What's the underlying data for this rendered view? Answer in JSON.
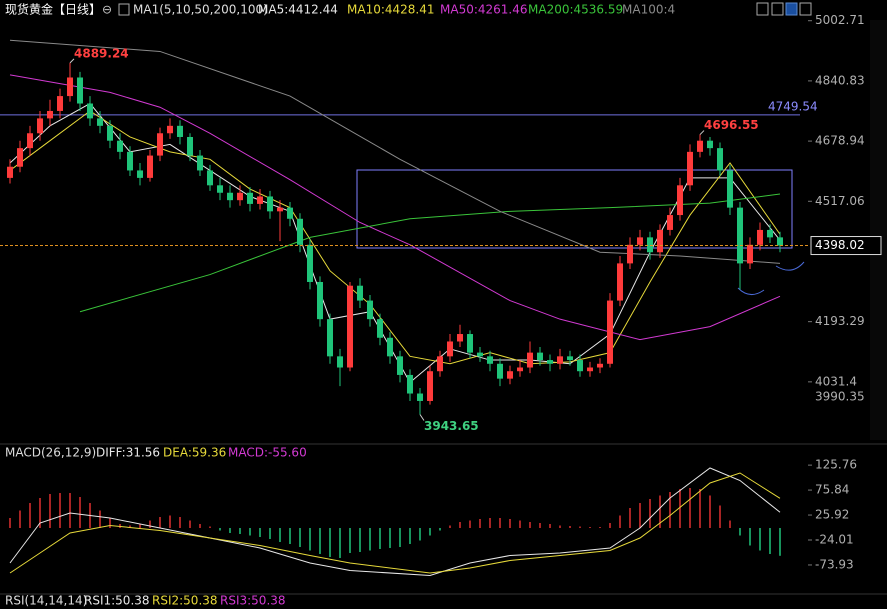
{
  "header": {
    "title": "现货黄金【日线】",
    "indicator": "MA1(5,10,50,200,100)",
    "ma_values": [
      "MA5:4412.44",
      "MA10:4428.41",
      "MA50:4261.46",
      "MA200:4536.59",
      "MA100:4"
    ]
  },
  "macd_header": [
    "MACD(26,12,9)",
    "DIFF:31.56",
    "DEA:59.36",
    "MACD:-55.60"
  ],
  "rsi_header": [
    "RSI(14,14,14)",
    "RSI1:50.38",
    "RSI2:50.38",
    "RSI3:50.38"
  ],
  "chart_data": [
    {
      "type": "candlestick",
      "up_color": "#ff3b3b",
      "down_color": "#1fc47a",
      "ylim": [
        3875,
        5010
      ],
      "yticks": [
        5002.71,
        4840.83,
        4678.94,
        4517.06,
        4193.29,
        4031.4
      ],
      "hline": 4749.54,
      "low_label": 3990.35,
      "candles": [
        [
          4580,
          4630,
          4565,
          4610
        ],
        [
          4610,
          4680,
          4595,
          4660
        ],
        [
          4660,
          4720,
          4640,
          4700
        ],
        [
          4700,
          4760,
          4680,
          4740
        ],
        [
          4740,
          4790,
          4720,
          4760
        ],
        [
          4760,
          4820,
          4740,
          4800
        ],
        [
          4800,
          4889.24,
          4785,
          4850
        ],
        [
          4850,
          4865,
          4760,
          4780
        ],
        [
          4780,
          4800,
          4720,
          4740
        ],
        [
          4740,
          4760,
          4700,
          4720
        ],
        [
          4720,
          4735,
          4660,
          4680
        ],
        [
          4680,
          4700,
          4630,
          4650
        ],
        [
          4650,
          4665,
          4585,
          4600
        ],
        [
          4600,
          4620,
          4560,
          4580
        ],
        [
          4580,
          4655,
          4570,
          4640
        ],
        [
          4640,
          4715,
          4625,
          4700
        ],
        [
          4700,
          4740,
          4685,
          4720
        ],
        [
          4720,
          4735,
          4670,
          4690
        ],
        [
          4690,
          4700,
          4625,
          4640
        ],
        [
          4640,
          4655,
          4585,
          4600
        ],
        [
          4600,
          4615,
          4545,
          4560
        ],
        [
          4560,
          4580,
          4520,
          4540
        ],
        [
          4540,
          4560,
          4500,
          4520
        ],
        [
          4520,
          4560,
          4505,
          4540
        ],
        [
          4540,
          4555,
          4490,
          4510
        ],
        [
          4510,
          4550,
          4495,
          4530
        ],
        [
          4530,
          4545,
          4470,
          4490
        ],
        [
          4490,
          4520,
          4410,
          4500
        ],
        [
          4500,
          4515,
          4450,
          4470
        ],
        [
          4470,
          4485,
          4380,
          4400
        ],
        [
          4400,
          4415,
          4280,
          4300
        ],
        [
          4300,
          4315,
          4180,
          4200
        ],
        [
          4200,
          4215,
          4080,
          4100
        ],
        [
          4100,
          4120,
          4020,
          4070
        ],
        [
          4070,
          4300,
          4060,
          4290
        ],
        [
          4290,
          4310,
          4230,
          4250
        ],
        [
          4250,
          4265,
          4180,
          4200
        ],
        [
          4200,
          4215,
          4130,
          4150
        ],
        [
          4150,
          4165,
          4080,
          4100
        ],
        [
          4100,
          4115,
          4030,
          4050
        ],
        [
          4050,
          4065,
          3980,
          4000
        ],
        [
          4000,
          4015,
          3943.65,
          3980
        ],
        [
          3980,
          4075,
          3970,
          4060
        ],
        [
          4060,
          4115,
          4045,
          4100
        ],
        [
          4100,
          4160,
          4085,
          4140
        ],
        [
          4140,
          4185,
          4125,
          4160
        ],
        [
          4160,
          4170,
          4095,
          4110
        ],
        [
          4110,
          4125,
          4085,
          4100
        ],
        [
          4100,
          4115,
          4060,
          4080
        ],
        [
          4080,
          4095,
          4020,
          4040
        ],
        [
          4040,
          4075,
          4025,
          4060
        ],
        [
          4060,
          4090,
          4045,
          4070
        ],
        [
          4070,
          4140,
          4055,
          4110
        ],
        [
          4110,
          4125,
          4075,
          4090
        ],
        [
          4090,
          4105,
          4060,
          4080
        ],
        [
          4080,
          4120,
          4065,
          4100
        ],
        [
          4100,
          4115,
          4075,
          4090
        ],
        [
          4090,
          4105,
          4045,
          4060
        ],
        [
          4060,
          4085,
          4045,
          4070
        ],
        [
          4070,
          4095,
          4055,
          4080
        ],
        [
          4080,
          4270,
          4070,
          4250
        ],
        [
          4250,
          4370,
          4235,
          4350
        ],
        [
          4350,
          4420,
          4335,
          4400
        ],
        [
          4400,
          4440,
          4385,
          4420
        ],
        [
          4420,
          4435,
          4360,
          4380
        ],
        [
          4380,
          4455,
          4365,
          4440
        ],
        [
          4440,
          4500,
          4425,
          4480
        ],
        [
          4480,
          4580,
          4465,
          4560
        ],
        [
          4560,
          4670,
          4545,
          4650
        ],
        [
          4650,
          4696.55,
          4635,
          4680
        ],
        [
          4680,
          4690,
          4640,
          4660
        ],
        [
          4660,
          4675,
          4585,
          4600
        ],
        [
          4600,
          4615,
          4480,
          4500
        ],
        [
          4500,
          4515,
          4280,
          4350
        ],
        [
          4350,
          4420,
          4335,
          4400
        ],
        [
          4400,
          4460,
          4385,
          4440
        ],
        [
          4440,
          4455,
          4405,
          4420
        ],
        [
          4420,
          4435,
          4380,
          4398.02
        ]
      ],
      "lines": [
        {
          "color": "#e8e8e8",
          "x": [
            0,
            4,
            8,
            12,
            16,
            20,
            24,
            28,
            32,
            36,
            40,
            44,
            48,
            52,
            56,
            60,
            64,
            68,
            72,
            77
          ],
          "values": [
            4620,
            4720,
            4780,
            4650,
            4670,
            4600,
            4530,
            4490,
            4200,
            4220,
            4030,
            4120,
            4090,
            4090,
            4080,
            4160,
            4380,
            4580,
            4580,
            4412.44
          ]
        },
        {
          "color": "#e6d93a",
          "x": [
            0,
            4,
            8,
            12,
            16,
            20,
            24,
            28,
            32,
            36,
            40,
            44,
            48,
            52,
            56,
            60,
            64,
            68,
            72,
            77
          ],
          "values": [
            4600,
            4680,
            4760,
            4690,
            4650,
            4630,
            4550,
            4500,
            4330,
            4240,
            4100,
            4080,
            4110,
            4080,
            4085,
            4110,
            4300,
            4480,
            4620,
            4428.41
          ]
        },
        {
          "color": "#d23ad2",
          "x": [
            0,
            10,
            15,
            20,
            28,
            35,
            40,
            50,
            55,
            63,
            70,
            77
          ],
          "values": [
            4857,
            4810,
            4770,
            4700,
            4575,
            4460,
            4400,
            4250,
            4200,
            4145,
            4180,
            4261.46
          ]
        },
        {
          "color": "#3ac43a",
          "x": [
            7,
            20,
            30,
            40,
            50,
            60,
            70,
            77
          ],
          "values": [
            4220,
            4320,
            4420,
            4470,
            4490,
            4500,
            4512,
            4536.59
          ]
        },
        {
          "color": "#8a8a8a",
          "x": [
            0,
            15,
            28,
            39,
            49,
            59,
            67,
            77
          ],
          "values": [
            4950,
            4920,
            4800,
            4630,
            4490,
            4380,
            4370,
            4350
          ]
        }
      ]
    },
    {
      "type": "macd",
      "up_color": "#e03030",
      "down_color": "#1fc47a",
      "ylim": [
        -128,
        160
      ],
      "yticks": [
        125.76,
        75.84,
        25.92,
        -24.01,
        -73.93
      ],
      "histogram": [
        20,
        35,
        50,
        60,
        68,
        70,
        70,
        62,
        50,
        35,
        20,
        8,
        5,
        8,
        15,
        22,
        25,
        22,
        15,
        8,
        3,
        -5,
        -10,
        -12,
        -15,
        -18,
        -22,
        -28,
        -32,
        -38,
        -45,
        -52,
        -58,
        -60,
        -50,
        -48,
        -45,
        -42,
        -40,
        -38,
        -32,
        -25,
        -15,
        -5,
        5,
        12,
        15,
        18,
        20,
        20,
        18,
        15,
        12,
        10,
        8,
        5,
        4,
        3,
        2,
        2,
        10,
        25,
        40,
        50,
        58,
        65,
        72,
        78,
        80,
        78,
        65,
        45,
        15,
        -15,
        -35,
        -45,
        -52,
        -55.6
      ],
      "lines": [
        {
          "color": "#e8e8e8",
          "x": [
            0,
            3,
            6,
            10,
            15,
            20,
            25,
            30,
            34,
            42,
            46,
            50,
            55,
            60,
            63,
            66,
            70,
            73,
            77
          ],
          "values": [
            -70,
            10,
            30,
            20,
            0,
            -20,
            -40,
            -70,
            -85,
            -95,
            -70,
            -55,
            -50,
            -40,
            0,
            60,
            120,
            95,
            31.56
          ]
        },
        {
          "color": "#e6d93a",
          "x": [
            0,
            3,
            6,
            10,
            15,
            20,
            25,
            30,
            34,
            42,
            46,
            50,
            55,
            60,
            63,
            66,
            70,
            73,
            77
          ],
          "values": [
            -90,
            -50,
            -10,
            5,
            -5,
            -20,
            -35,
            -55,
            -70,
            -90,
            -80,
            -65,
            -55,
            -45,
            -20,
            25,
            90,
            110,
            59.36
          ]
        }
      ]
    }
  ]
}
